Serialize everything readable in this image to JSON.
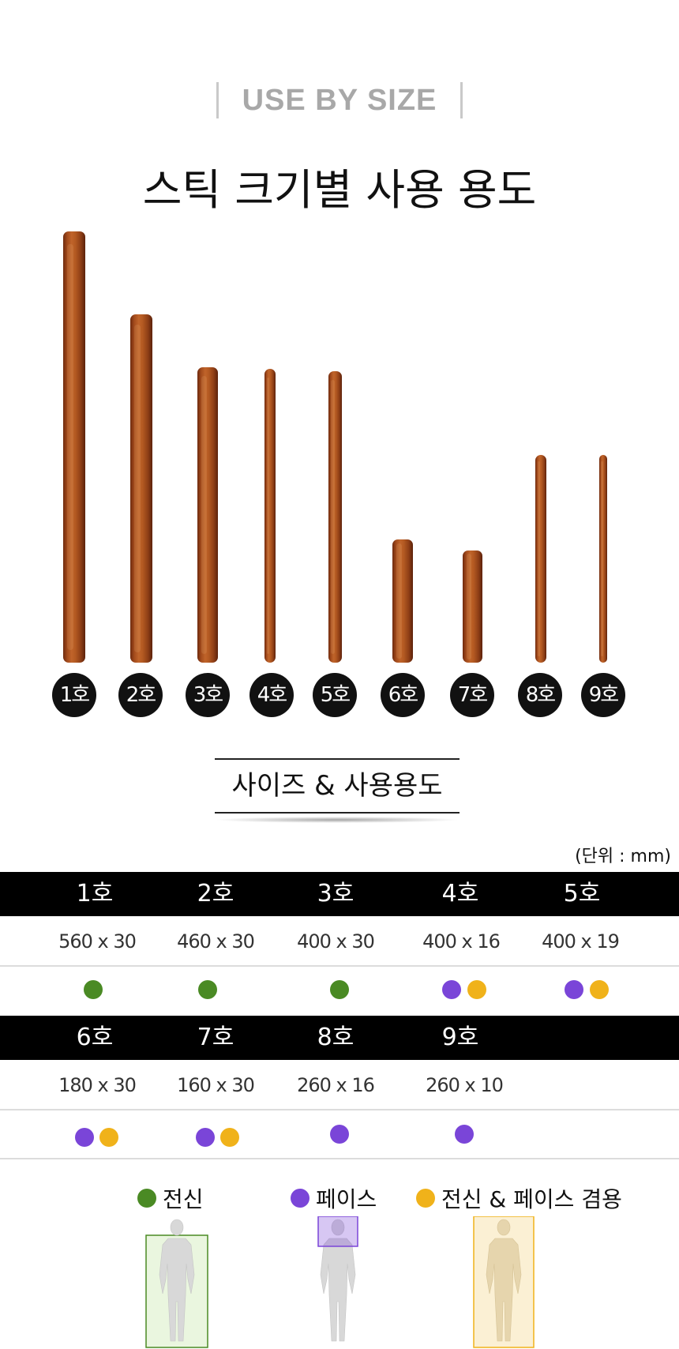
{
  "header": {
    "eyebrow": "USE BY SIZE",
    "title": "스틱 크기별 사용 용도"
  },
  "sticks": [
    "1호",
    "2호",
    "3호",
    "4호",
    "5호",
    "6호",
    "7호",
    "8호",
    "9호"
  ],
  "section": {
    "subtitle": "사이즈  &  사용용도",
    "unit": "(단위  : mm)"
  },
  "table": {
    "row1": {
      "labels": [
        "1호",
        "2호",
        "3호",
        "4호",
        "5호"
      ],
      "sizes": [
        "560 x 30",
        "460 x 30",
        "400 x 30",
        "400 x 16",
        "400 x 19"
      ],
      "uses": [
        [
          "full"
        ],
        [
          "full"
        ],
        [
          "full"
        ],
        [
          "face",
          "both"
        ],
        [
          "face",
          "both"
        ]
      ]
    },
    "row2": {
      "labels": [
        "6호",
        "7호",
        "8호",
        "9호"
      ],
      "sizes": [
        "180 x 30",
        "160 x 30",
        "260 x 16",
        "260 x 10"
      ],
      "uses": [
        [
          "face",
          "both"
        ],
        [
          "face",
          "both"
        ],
        [
          "face"
        ],
        [
          "face"
        ]
      ]
    }
  },
  "legend": {
    "full": "전신",
    "face": "페이스",
    "both": "전신 & 페이스 겸용"
  },
  "colors": {
    "full": "#4a8a24",
    "face": "#7a45d8",
    "both": "#f0b21a",
    "wood": "#a34b1c",
    "header_bg": "#000000"
  }
}
